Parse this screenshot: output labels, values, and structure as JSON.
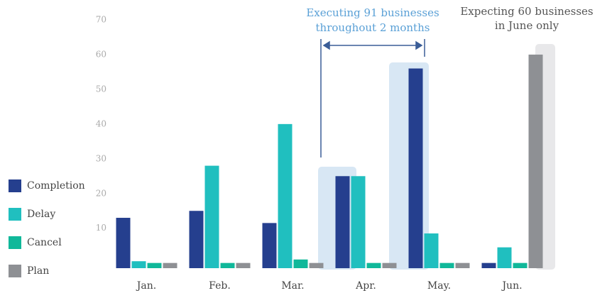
{
  "chart_data": {
    "type": "bar",
    "categories": [
      "Jan.",
      "Feb.",
      "Mar.",
      "Apr.",
      "May.",
      "Jun."
    ],
    "series": [
      {
        "name": "Completion",
        "color": "#253f8e",
        "values": [
          13,
          15,
          11.5,
          25,
          56,
          0
        ]
      },
      {
        "name": "Delay",
        "color": "#20bfbf",
        "values": [
          0.5,
          28,
          40,
          25,
          8.5,
          4.5
        ]
      },
      {
        "name": "Cancel",
        "color": "#10b89a",
        "values": [
          0,
          0,
          1,
          0,
          0,
          0
        ]
      },
      {
        "name": "Plan",
        "color": "#8e9094",
        "values": [
          0,
          0,
          0,
          0,
          0,
          60
        ]
      }
    ],
    "ylim": [
      -1.5,
      70
    ],
    "yticks": [
      10,
      20,
      30,
      40,
      50,
      60,
      70
    ],
    "grid": false,
    "legend": "left",
    "annotations": [
      [
        "Executing 91 businesses",
        "throughout 2 months"
      ],
      [
        "Expecting 60 businesses",
        "in June only"
      ]
    ]
  }
}
